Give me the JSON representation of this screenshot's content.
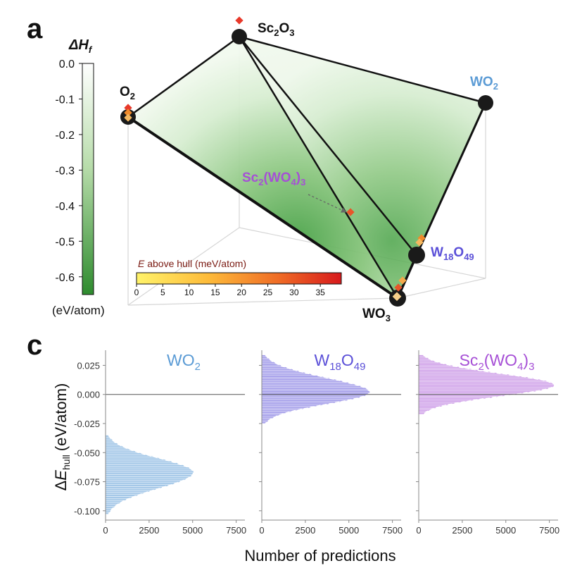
{
  "panel_a": {
    "label": "a",
    "colorbar": {
      "title": "ΔH",
      "title_sub": "f",
      "unit": "(eV/atom)",
      "ticks": [
        "0.0",
        "-0.1",
        "-0.2",
        "-0.3",
        "-0.4",
        "-0.5",
        "-0.6"
      ],
      "range": [
        -0.65,
        0.0
      ]
    },
    "hull_legend": {
      "title_italic": "E",
      "title_rest": " above hull (meV/atom)",
      "ticks": [
        "0",
        "5",
        "10",
        "15",
        "20",
        "25",
        "30",
        "35"
      ],
      "range": [
        0,
        39
      ]
    },
    "phases": {
      "sc2o3": {
        "main": "Sc",
        "sub1": "2",
        "main2": "O",
        "sub2": "3"
      },
      "o2": {
        "main": "O",
        "sub1": "2"
      },
      "wo2": {
        "main": "WO",
        "sub1": "2"
      },
      "w18o49": {
        "main": "W",
        "sub1": "18",
        "main2": "O",
        "sub2": "49"
      },
      "wo3": {
        "main": "WO",
        "sub1": "3"
      },
      "sc2wo43": {
        "main": "Sc",
        "sub1": "2",
        "main2": "(WO",
        "sub2": "4",
        "main3": ")",
        "sub3": "3"
      }
    },
    "colors": {
      "wo2": "#5b9bd5",
      "w18o49": "#5b50d8",
      "sc2wo43": "#a64fd6",
      "hull_low": "#ffee58",
      "hull_high": "#d7191c",
      "green_dark": "#2e8b2e"
    }
  },
  "panel_c": {
    "label": "c",
    "ylabel_delta": "Δ",
    "ylabel_e": "E",
    "ylabel_sub": "hull",
    "ylabel_unit": "(eV/atom)",
    "xlabel": "Number of predictions",
    "y_ticks": [
      "0.025",
      "0.000",
      "-0.025",
      "-0.050",
      "-0.075",
      "-0.100"
    ],
    "x_ticks": [
      "0",
      "2500",
      "5000",
      "7500"
    ]
  },
  "chart_data": [
    {
      "type": "area",
      "title": "WO2",
      "title_parts": {
        "main": "WO",
        "sub": "2"
      },
      "color": "#5b9bd5",
      "xlabel": "Number of predictions",
      "ylabel": "ΔE_hull (eV/atom)",
      "xlim": [
        0,
        8000
      ],
      "ylim": [
        -0.108,
        0.038
      ],
      "peak_y": -0.067,
      "peak_count": 5050,
      "y_extent": [
        -0.103,
        -0.035
      ],
      "x": [
        0,
        1500,
        3500,
        5050,
        3000,
        1200,
        400,
        0
      ],
      "y": [
        -0.035,
        -0.05,
        -0.06,
        -0.067,
        -0.075,
        -0.085,
        -0.095,
        -0.103
      ]
    },
    {
      "type": "area",
      "title": "W18O49",
      "title_parts": {
        "main": "W",
        "sub": "18",
        "main2": "O",
        "sub2": "49"
      },
      "color": "#5b50d8",
      "xlabel": "Number of predictions",
      "ylabel": "ΔE_hull (eV/atom)",
      "xlim": [
        0,
        8000
      ],
      "ylim": [
        -0.108,
        0.038
      ],
      "peak_y": 0.002,
      "peak_count": 6200,
      "y_extent": [
        -0.025,
        0.034
      ],
      "x": [
        0,
        1500,
        4000,
        6200,
        3500,
        1000,
        0
      ],
      "y": [
        0.034,
        0.02,
        0.008,
        0.002,
        -0.005,
        -0.015,
        -0.025
      ]
    },
    {
      "type": "area",
      "title": "Sc2(WO4)3",
      "title_parts": {
        "main": "Sc",
        "sub": "2",
        "main2": "(WO",
        "sub2": "4",
        "main3": ")",
        "sub3": "3"
      },
      "color": "#a64fd6",
      "xlabel": "Number of predictions",
      "ylabel": "ΔE_hull (eV/atom)",
      "xlim": [
        0,
        8000
      ],
      "ylim": [
        -0.108,
        0.038
      ],
      "peak_y": 0.008,
      "peak_count": 7800,
      "y_extent": [
        -0.017,
        0.034
      ],
      "x": [
        0,
        1500,
        4500,
        7800,
        4000,
        1000,
        0
      ],
      "y": [
        0.034,
        0.024,
        0.014,
        0.008,
        0.002,
        -0.008,
        -0.017
      ]
    }
  ]
}
